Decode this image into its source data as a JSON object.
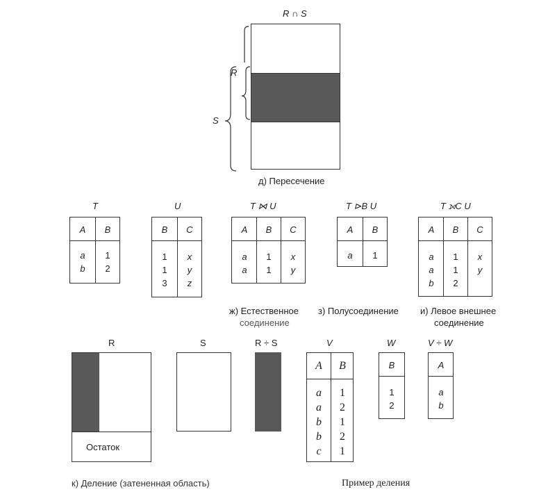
{
  "intersection": {
    "title": "R ∩ S",
    "r_label": "R",
    "s_label": "S",
    "caption": "д) Пересечение"
  },
  "joins": {
    "t": {
      "title": "T",
      "headers": [
        "A",
        "B"
      ],
      "columns": [
        [
          "a",
          "b"
        ],
        [
          "1",
          "2"
        ]
      ]
    },
    "u": {
      "title": "U",
      "headers": [
        "B",
        "C"
      ],
      "columns": [
        [
          "1",
          "1",
          "3"
        ],
        [
          "x",
          "y",
          "z"
        ]
      ]
    },
    "natural": {
      "title": "T ⋈ U",
      "headers": [
        "A",
        "B",
        "C"
      ],
      "columns": [
        [
          "a",
          "a"
        ],
        [
          "1",
          "1"
        ],
        [
          "x",
          "y"
        ]
      ]
    },
    "semi": {
      "title": "T ⊳B U",
      "headers": [
        "A",
        "B"
      ],
      "columns": [
        [
          "a"
        ],
        [
          "1"
        ]
      ]
    },
    "outer": {
      "title": "T ⟕C U",
      "headers": [
        "A",
        "B",
        "C"
      ],
      "columns": [
        [
          "a",
          "a",
          "b"
        ],
        [
          "1",
          "1",
          "2"
        ],
        [
          "x",
          "y",
          ""
        ]
      ]
    },
    "captions": {
      "natural_line1": "ж) Естественное",
      "natural_line2": "соединение",
      "semi": "з) Полусоединение",
      "outer_line1": "и) Левое внешнее",
      "outer_line2": "соединение"
    }
  },
  "division": {
    "r_label": "R",
    "s_label": "S",
    "rs_label": "R ÷ S",
    "remainder": "Остаток",
    "caption": "к) Деление (затененная область)"
  },
  "division_example": {
    "v": {
      "title": "V",
      "headers": [
        "A",
        "B"
      ],
      "columns": [
        [
          "a",
          "a",
          "b",
          "b",
          "c"
        ],
        [
          "1",
          "2",
          "1",
          "2",
          "1"
        ]
      ]
    },
    "w": {
      "title": "W",
      "headers": [
        "B"
      ],
      "columns": [
        [
          "1",
          "2"
        ]
      ]
    },
    "vw": {
      "title": "V ÷ W",
      "headers": [
        "A"
      ],
      "columns": [
        [
          "a",
          "b"
        ]
      ]
    },
    "caption": "Пример деления"
  },
  "colors": {
    "shade": "#595959",
    "line": "#333333"
  }
}
